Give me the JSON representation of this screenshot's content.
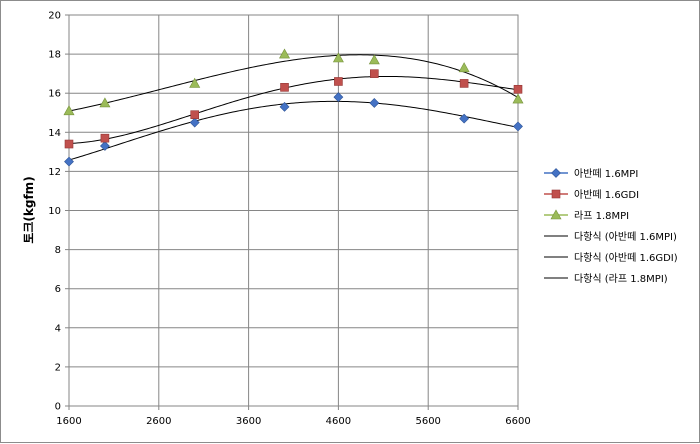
{
  "chart_data": {
    "type": "scatter",
    "xlabel": "",
    "ylabel": "토크(kgfm)",
    "xlim": [
      1600,
      6600
    ],
    "ylim": [
      0,
      20
    ],
    "xticks": [
      1600,
      2600,
      3600,
      4600,
      5600,
      6600
    ],
    "yticks": [
      0,
      2,
      4,
      6,
      8,
      10,
      12,
      14,
      16,
      18,
      20
    ],
    "grid": true,
    "legend_position": "right",
    "series": [
      {
        "name": "아반떼 1.6MPI",
        "marker": "diamond",
        "color": "#4472c4",
        "points": [
          [
            1600,
            12.5
          ],
          [
            2000,
            13.3
          ],
          [
            3000,
            14.5
          ],
          [
            4000,
            15.3
          ],
          [
            4600,
            15.8
          ],
          [
            5000,
            15.5
          ],
          [
            6000,
            14.7
          ],
          [
            6600,
            14.3
          ]
        ]
      },
      {
        "name": "아반떼 1.6GDI",
        "marker": "square",
        "color": "#c0504d",
        "points": [
          [
            1600,
            13.4
          ],
          [
            2000,
            13.7
          ],
          [
            3000,
            14.9
          ],
          [
            4000,
            16.3
          ],
          [
            4600,
            16.6
          ],
          [
            5000,
            17.0
          ],
          [
            6000,
            16.5
          ],
          [
            6600,
            16.2
          ]
        ]
      },
      {
        "name": "라프 1.8MPI",
        "marker": "triangle",
        "color": "#9bbb59",
        "points": [
          [
            1600,
            15.1
          ],
          [
            2000,
            15.5
          ],
          [
            3000,
            16.5
          ],
          [
            4000,
            18.0
          ],
          [
            4600,
            17.8
          ],
          [
            5000,
            17.7
          ],
          [
            6000,
            17.3
          ],
          [
            6600,
            15.7
          ]
        ]
      }
    ],
    "trendlines": [
      {
        "name": "다항식 (아반떼 1.6MPI)",
        "of": 0,
        "color": "#000000"
      },
      {
        "name": "다항식 (아반떼 1.6GDI)",
        "of": 1,
        "color": "#000000"
      },
      {
        "name": "다항식 (라프 1.8MPI)",
        "of": 2,
        "color": "#000000"
      }
    ]
  }
}
